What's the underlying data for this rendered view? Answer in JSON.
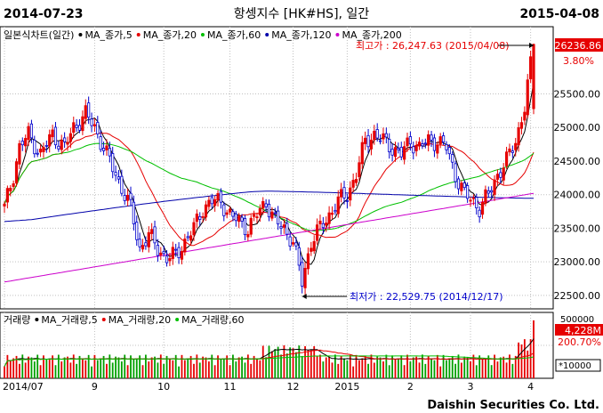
{
  "header": {
    "start_date": "2014-07-23",
    "title": "항셍지수 [HK#HS], 일간",
    "end_date": "2015-04-08"
  },
  "footer": {
    "brand": "Daishin Securities Co. Ltd."
  },
  "colors": {
    "up": "#e60000",
    "down": "#0000cc",
    "ma5": "#000000",
    "ma20": "#e60000",
    "ma60": "#00c000",
    "ma120": "#0000aa",
    "ma200": "#cc00cc",
    "accent_box": "#e60000"
  },
  "chart_data": {
    "type": "candlestick",
    "price_panel": {
      "legend": [
        {
          "label": "일본식차트(일간)",
          "color": "#000000"
        },
        {
          "label": "MA_종가,5",
          "color": "#000000"
        },
        {
          "label": "MA_종가,20",
          "color": "#e60000"
        },
        {
          "label": "MA_종가,60",
          "color": "#00c000"
        },
        {
          "label": "MA_종가,120",
          "color": "#0000aa"
        },
        {
          "label": "MA_종가,200",
          "color": "#cc00cc"
        }
      ],
      "ylim": [
        22300,
        26500
      ],
      "y_ticks": [
        "22500.00",
        "23000.00",
        "23500.00",
        "24000.00",
        "24500.00",
        "25000.00",
        "25500.00"
      ],
      "last_value": "26236.86",
      "last_change": "3.80%",
      "high_annotation": "최고가 : 26,247.63 (2015/04/08)",
      "low_annotation": "최저가 : 22,529.75 (2014/12/17)",
      "high_value": 26247.63,
      "low_value": 22529.75
    },
    "volume_panel": {
      "legend": [
        {
          "label": "거래량",
          "color": "#000000"
        },
        {
          "label": "MA_거래량,5",
          "color": "#000000"
        },
        {
          "label": "MA_거래량,20",
          "color": "#e60000"
        },
        {
          "label": "MA_거래량,60",
          "color": "#00c000"
        }
      ],
      "ylim": [
        0,
        500000
      ],
      "top_tick": "500000",
      "last_value": "4,228M",
      "last_change": "200.70%",
      "unit": "*10000"
    },
    "x_labels": [
      "2014/07",
      "9",
      "10",
      "11",
      "12",
      "2015",
      "2",
      "3",
      "4"
    ],
    "x_label_positions": [
      0,
      30,
      53,
      75,
      96,
      114,
      135,
      155,
      175
    ],
    "n_bars": 177,
    "close_anchors": [
      [
        0,
        23800
      ],
      [
        3,
        24300
      ],
      [
        5,
        24700
      ],
      [
        8,
        24900
      ],
      [
        12,
        24600
      ],
      [
        16,
        24900
      ],
      [
        20,
        24700
      ],
      [
        23,
        25000
      ],
      [
        27,
        25200
      ],
      [
        30,
        25000
      ],
      [
        33,
        24700
      ],
      [
        36,
        24400
      ],
      [
        39,
        24100
      ],
      [
        42,
        23800
      ],
      [
        45,
        23200
      ],
      [
        48,
        23400
      ],
      [
        51,
        23200
      ],
      [
        54,
        23050
      ],
      [
        57,
        23100
      ],
      [
        60,
        23300
      ],
      [
        63,
        23500
      ],
      [
        66,
        23800
      ],
      [
        69,
        23900
      ],
      [
        72,
        23900
      ],
      [
        75,
        23700
      ],
      [
        78,
        23600
      ],
      [
        81,
        23500
      ],
      [
        84,
        23700
      ],
      [
        87,
        23900
      ],
      [
        90,
        23600
      ],
      [
        93,
        23500
      ],
      [
        96,
        23300
      ],
      [
        99,
        22700
      ],
      [
        102,
        23300
      ],
      [
        105,
        23500
      ],
      [
        108,
        23700
      ],
      [
        111,
        23900
      ],
      [
        114,
        24000
      ],
      [
        117,
        24300
      ],
      [
        120,
        24800
      ],
      [
        123,
        24900
      ],
      [
        126,
        24800
      ],
      [
        129,
        24700
      ],
      [
        132,
        24600
      ],
      [
        135,
        24800
      ],
      [
        138,
        24700
      ],
      [
        141,
        24800
      ],
      [
        144,
        24800
      ],
      [
        147,
        24700
      ],
      [
        150,
        24300
      ],
      [
        153,
        24000
      ],
      [
        156,
        23900
      ],
      [
        158,
        23800
      ],
      [
        161,
        24000
      ],
      [
        164,
        24300
      ],
      [
        167,
        24500
      ],
      [
        170,
        24800
      ],
      [
        173,
        25300
      ],
      [
        176,
        26236.86
      ]
    ]
  }
}
